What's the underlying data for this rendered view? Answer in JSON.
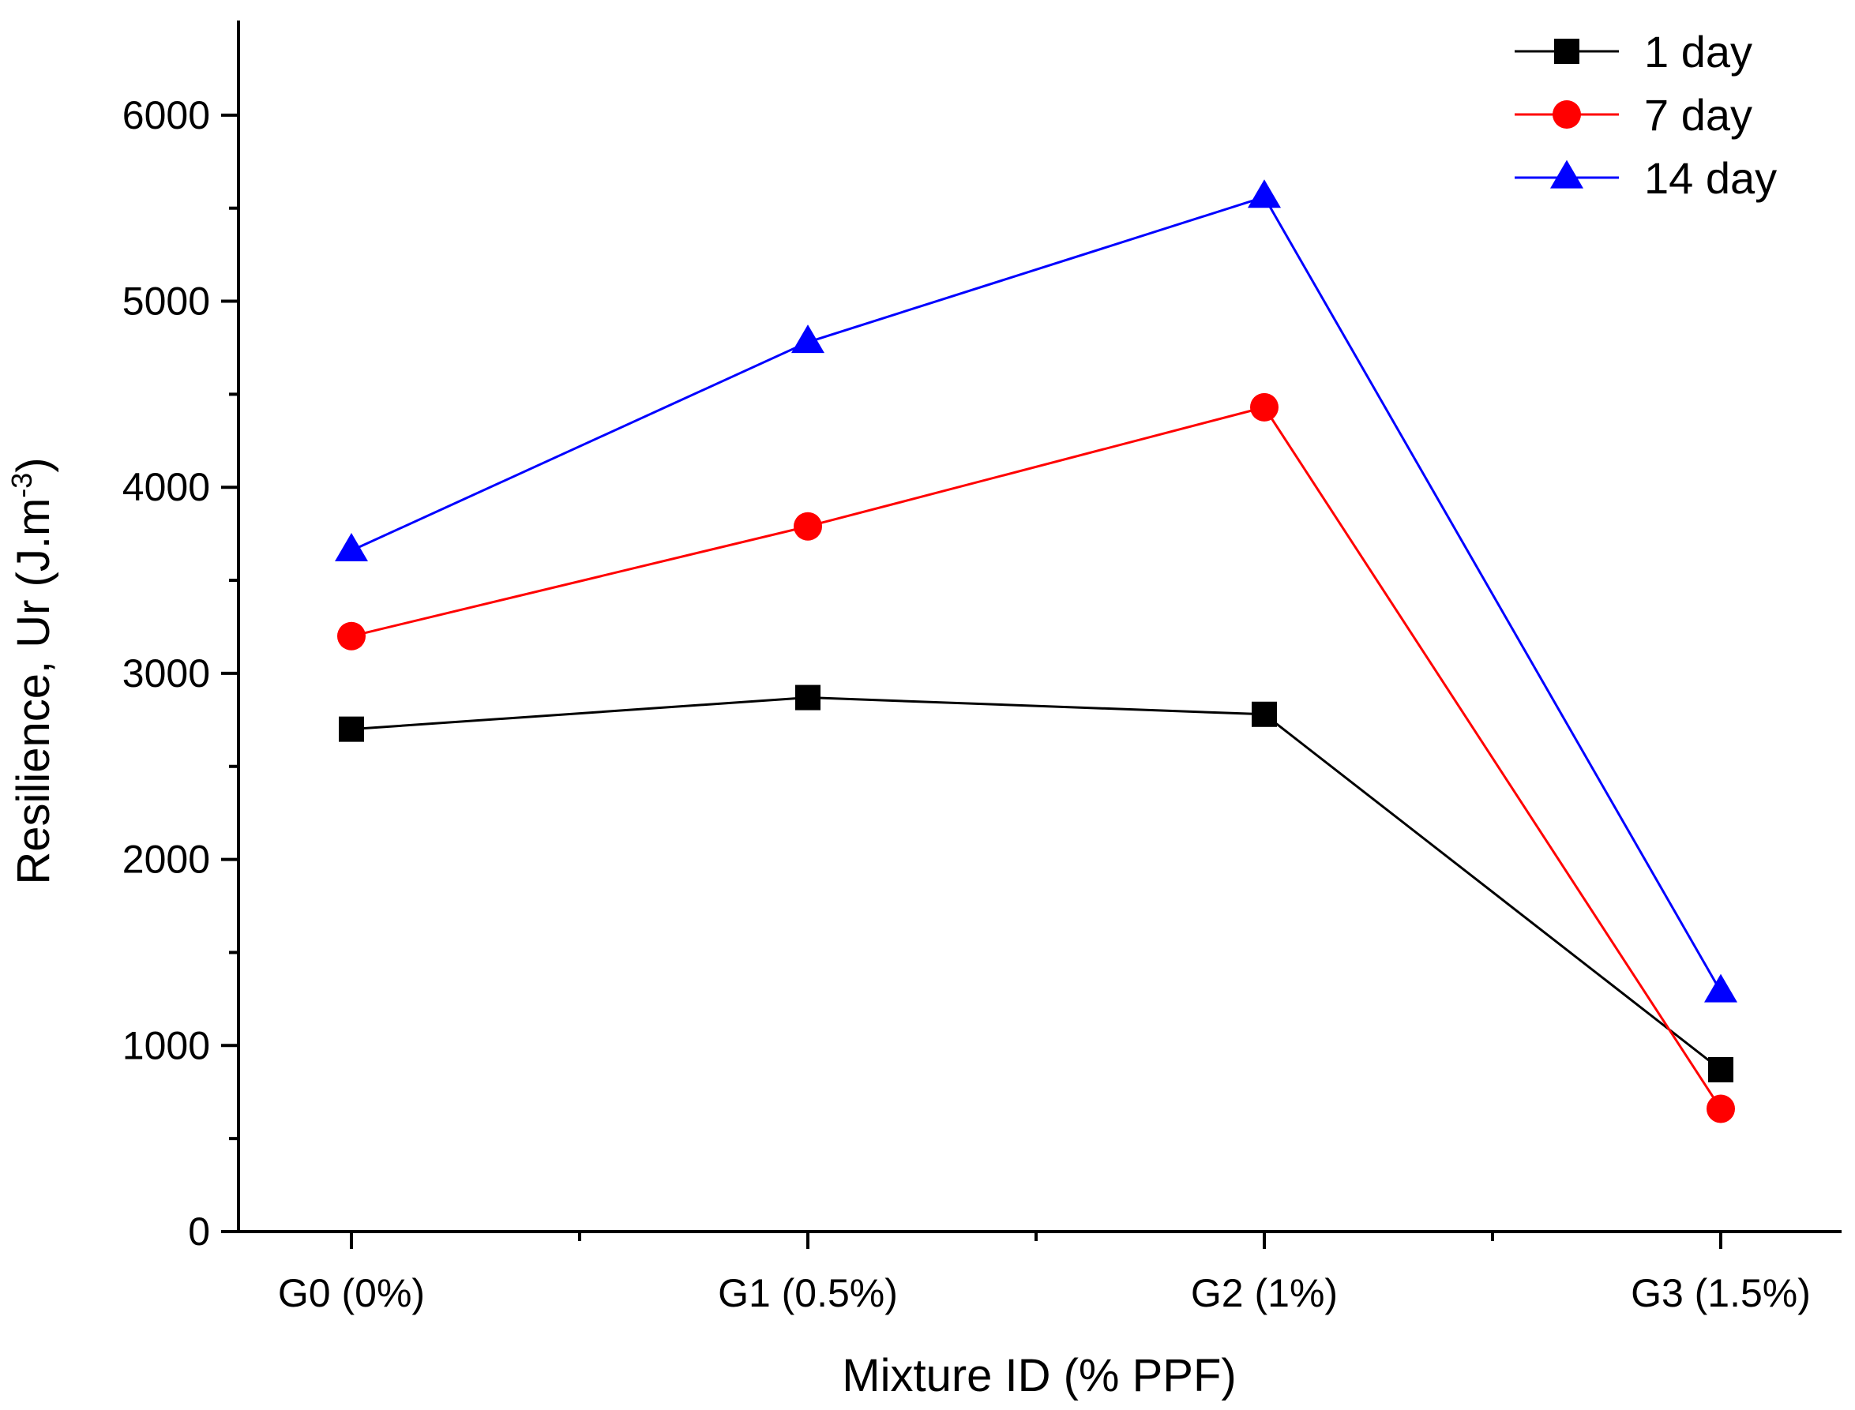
{
  "chart_data": {
    "type": "line",
    "title": "",
    "xlabel": "Mixture ID (% PPF)",
    "ylabel": {
      "main": "Resilience, Ur (J.m",
      "superscript": "-3",
      "close": ")"
    },
    "categories": [
      "G0 (0%)",
      "G1 (0.5%)",
      "G2 (1%)",
      "G3 (1.5%)"
    ],
    "ylim": [
      0,
      6500
    ],
    "yticks": [
      0,
      1000,
      2000,
      3000,
      4000,
      5000,
      6000
    ],
    "grid": false,
    "legend_position": "top-right",
    "series": [
      {
        "name": "1 day",
        "color": "#000000",
        "marker": "square",
        "values": [
          2700,
          2870,
          2780,
          870
        ]
      },
      {
        "name": "7 day",
        "color": "#ff0000",
        "marker": "circle",
        "values": [
          3200,
          3790,
          4430,
          660
        ]
      },
      {
        "name": "14 day",
        "color": "#0000ff",
        "marker": "triangle",
        "values": [
          3660,
          4780,
          5560,
          1290
        ]
      }
    ]
  }
}
